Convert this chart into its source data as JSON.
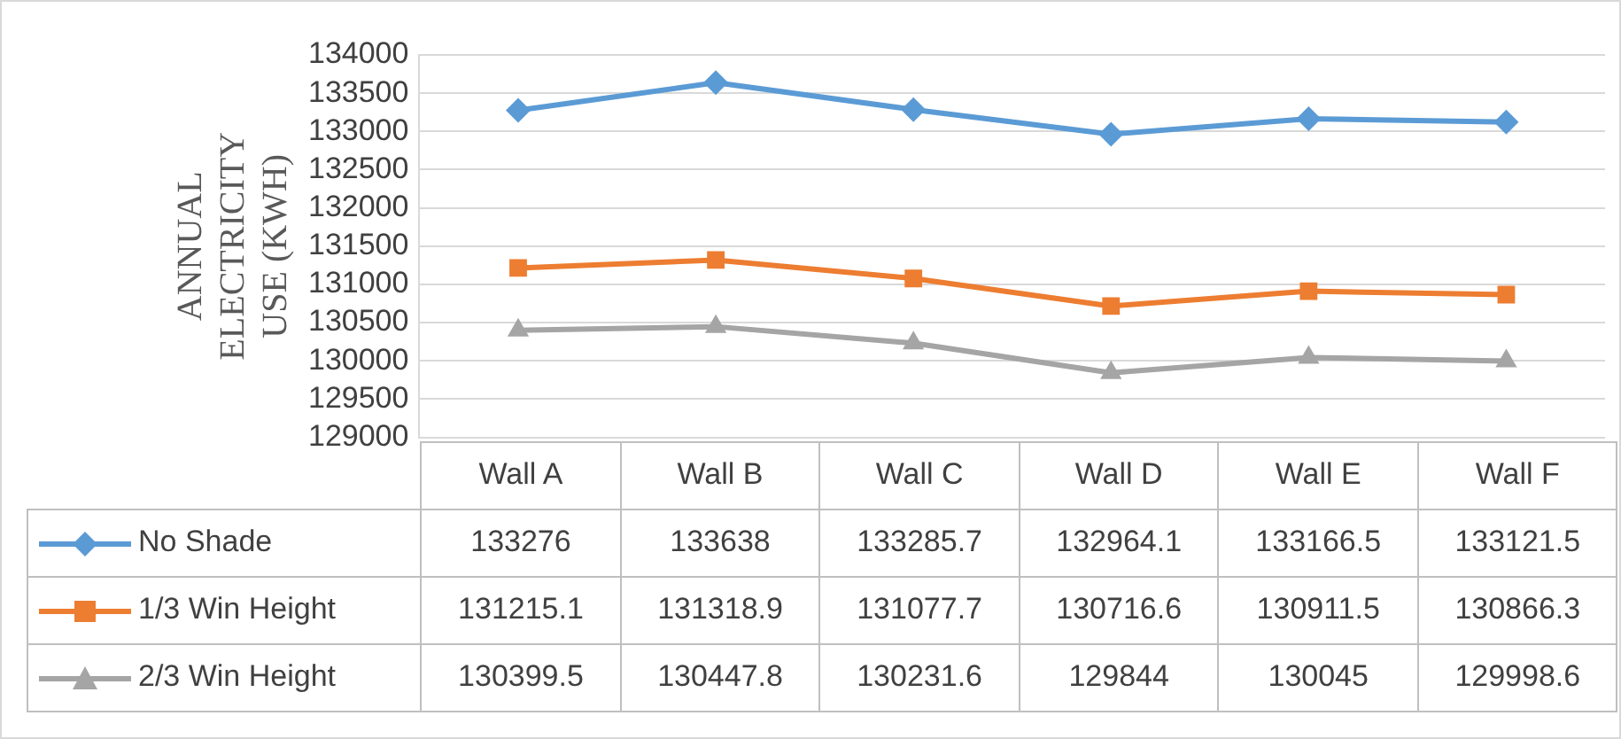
{
  "chart_data": {
    "type": "line",
    "ylabel": "ANNUAL ELECTRICITY USE (KWH)",
    "categories": [
      "Wall A",
      "Wall B",
      "Wall C",
      "Wall D",
      "Wall E",
      "Wall F"
    ],
    "series": [
      {
        "name": "No Shade",
        "color": "#5b9bd5",
        "marker": "diamond",
        "values": [
          133276,
          133638,
          133285.7,
          132964.1,
          133166.5,
          133121.5
        ]
      },
      {
        "name": "1/3 Win Height",
        "color": "#ed7d31",
        "marker": "square",
        "values": [
          131215.1,
          131318.9,
          131077.7,
          130716.6,
          130911.5,
          130866.3
        ]
      },
      {
        "name": "2/3 Win Height",
        "color": "#a5a5a5",
        "marker": "triangle",
        "values": [
          130399.5,
          130447.8,
          130231.6,
          129844,
          130045,
          129998.6
        ]
      }
    ],
    "ylim": [
      129000,
      134000
    ],
    "yticks": [
      129000,
      129500,
      130000,
      130500,
      131000,
      131500,
      132000,
      132500,
      133000,
      133500,
      134000
    ],
    "grid": "y",
    "legend": "bottom",
    "data_labels": true
  }
}
